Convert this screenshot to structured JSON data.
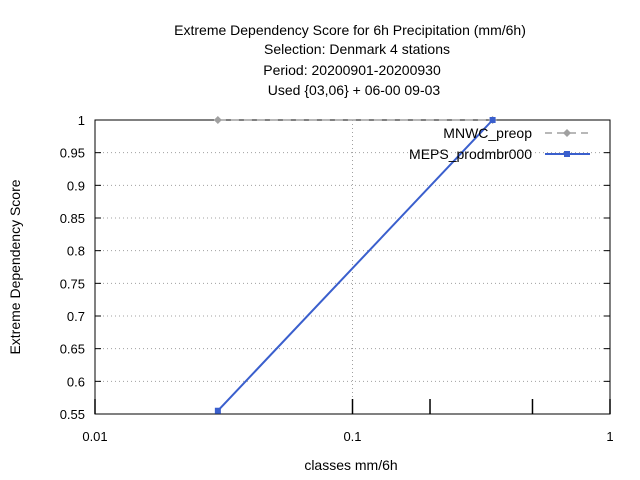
{
  "chart_data": {
    "type": "line",
    "title_lines": [
      "Extreme Dependency Score  for 6h Precipitation (mm/6h)",
      "Selection: Denmark      4 stations",
      "Period: 20200901-20200930",
      "Used {03,06} + 06-00 09-03"
    ],
    "xlabel": "classes mm/6h",
    "ylabel": "Extreme Dependency Score",
    "x_scale": "log",
    "xlim": [
      0.01,
      1
    ],
    "ylim": [
      0.55,
      1
    ],
    "x_ticks": [
      {
        "value": 0.01,
        "label": "0.01"
      },
      {
        "value": 0.1,
        "label": "0.1"
      },
      {
        "value": 1,
        "label": "1"
      }
    ],
    "x_minor_ticks": [
      0.2,
      0.5
    ],
    "y_ticks": [
      {
        "value": 0.55,
        "label": "0.55"
      },
      {
        "value": 0.6,
        "label": "0.6"
      },
      {
        "value": 0.65,
        "label": "0.65"
      },
      {
        "value": 0.7,
        "label": "0.7"
      },
      {
        "value": 0.75,
        "label": "0.75"
      },
      {
        "value": 0.8,
        "label": "0.8"
      },
      {
        "value": 0.85,
        "label": "0.85"
      },
      {
        "value": 0.9,
        "label": "0.9"
      },
      {
        "value": 0.95,
        "label": "0.95"
      },
      {
        "value": 1,
        "label": "1"
      }
    ],
    "grid": true,
    "legend_position": "top-right",
    "series": [
      {
        "name": "MNWC_preop",
        "color": "#a0a0a0",
        "dashed": true,
        "marker": "diamond",
        "points": [
          [
            0.03,
            1
          ],
          [
            0.35,
            1
          ]
        ]
      },
      {
        "name": "MEPS_prodmbr000",
        "color": "#3a5fcd",
        "dashed": false,
        "marker": "square",
        "points": [
          [
            0.03,
            0.555
          ],
          [
            0.35,
            1
          ]
        ]
      }
    ]
  }
}
